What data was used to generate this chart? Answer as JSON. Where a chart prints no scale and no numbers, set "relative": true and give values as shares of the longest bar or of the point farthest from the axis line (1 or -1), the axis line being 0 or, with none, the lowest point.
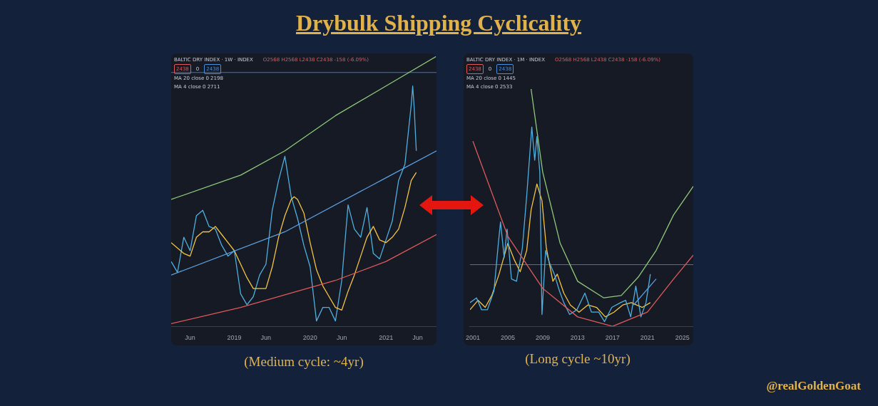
{
  "chart_data": [
    {
      "type": "line",
      "title": "BALTIC DRY INDEX · 1W · INDEX",
      "relative": true,
      "legend": false,
      "tick_labels": "x",
      "annotations": [
        "O2568 H2568 L2438 C2438 -158 (-6.09%)",
        "2438",
        "0",
        "2438",
        "MA 20 close 0 2198",
        "MA 4 close 0 2711",
        "(Medium cycle: ~4yr)",
        "Drybulk Shipping Cyclicality"
      ],
      "xlim": [
        "2018-03",
        "2021-09"
      ],
      "xticks": [
        {
          "value": "2018-06",
          "label": "Jun"
        },
        {
          "value": "2019-01",
          "label": "2019"
        },
        {
          "value": "2019-06",
          "label": "Jun"
        },
        {
          "value": "2020-01",
          "label": "2020"
        },
        {
          "value": "2020-06",
          "label": "Jun"
        },
        {
          "value": "2021-01",
          "label": "2021"
        },
        {
          "value": "2021-06",
          "label": "Jun"
        }
      ],
      "ref_lines": [
        {
          "axis": "y",
          "value": 0.94,
          "color": "#3a78c2"
        }
      ],
      "series": [
        {
          "color": "#e05a5a",
          "x": [
            "2018-03",
            "2019-02",
            "2020-05",
            "2021-01",
            "2021-09"
          ],
          "values": [
            0.01,
            0.07,
            0.17,
            0.24,
            0.34
          ]
        },
        {
          "color": "#5b9fe0",
          "x": [
            "2018-03",
            "2019-09",
            "2021-01",
            "2021-09"
          ],
          "values": [
            0.19,
            0.35,
            0.55,
            0.65
          ]
        },
        {
          "color": "#8fc97a",
          "x": [
            "2018-03",
            "2019-02",
            "2019-09",
            "2020-05",
            "2021-01",
            "2021-09"
          ],
          "values": [
            0.47,
            0.56,
            0.65,
            0.78,
            0.89,
            1.0
          ]
        },
        {
          "color": "#f5c542",
          "x": [
            "2018-03",
            "2018-05",
            "2018-06",
            "2018-07",
            "2018-08",
            "2018-09",
            "2018-10",
            "2018-11",
            "2018-12",
            "2019-01",
            "2019-02",
            "2019-03",
            "2019-04",
            "2019-05",
            "2019-06",
            "2019-07",
            "2019-08",
            "2019-09",
            "2019-10",
            "2019-10-15",
            "2019-11",
            "2019-12",
            "2020-01",
            "2020-02",
            "2020-03",
            "2020-04",
            "2020-05",
            "2020-06",
            "2020-07",
            "2020-08",
            "2020-09",
            "2020-10",
            "2020-11",
            "2020-12",
            "2021-01",
            "2021-02",
            "2021-03",
            "2021-04",
            "2021-05",
            "2021-05-25"
          ],
          "values": [
            0.31,
            0.27,
            0.26,
            0.33,
            0.35,
            0.35,
            0.37,
            0.34,
            0.31,
            0.28,
            0.23,
            0.18,
            0.14,
            0.14,
            0.14,
            0.22,
            0.33,
            0.41,
            0.47,
            0.48,
            0.47,
            0.42,
            0.31,
            0.21,
            0.15,
            0.11,
            0.07,
            0.06,
            0.13,
            0.19,
            0.26,
            0.33,
            0.37,
            0.32,
            0.31,
            0.33,
            0.36,
            0.44,
            0.54,
            0.57
          ]
        },
        {
          "color": "#4fb0e0",
          "x": [
            "2018-03",
            "2018-04",
            "2018-05",
            "2018-06",
            "2018-07",
            "2018-08",
            "2018-09",
            "2018-10",
            "2018-11",
            "2018-12",
            "2019-01",
            "2019-02",
            "2019-03",
            "2019-04",
            "2019-05",
            "2019-06",
            "2019-07",
            "2019-08",
            "2019-09",
            "2019-10",
            "2019-11",
            "2019-12",
            "2020-01",
            "2020-02",
            "2020-03",
            "2020-04",
            "2020-05",
            "2020-06",
            "2020-07",
            "2020-08",
            "2020-09",
            "2020-10",
            "2020-11",
            "2020-12",
            "2021-01",
            "2021-02",
            "2021-03",
            "2021-04",
            "2021-05",
            "2021-05-08",
            "2021-05-15",
            "2021-05-25"
          ],
          "values": [
            0.24,
            0.2,
            0.33,
            0.28,
            0.41,
            0.43,
            0.37,
            0.36,
            0.3,
            0.26,
            0.28,
            0.12,
            0.08,
            0.11,
            0.19,
            0.23,
            0.43,
            0.54,
            0.63,
            0.48,
            0.4,
            0.3,
            0.22,
            0.02,
            0.07,
            0.07,
            0.02,
            0.17,
            0.45,
            0.36,
            0.33,
            0.44,
            0.27,
            0.25,
            0.32,
            0.39,
            0.54,
            0.6,
            0.82,
            0.89,
            0.81,
            0.65
          ]
        }
      ]
    },
    {
      "type": "line",
      "title": "BALTIC DRY INDEX · 1M · INDEX",
      "relative": true,
      "legend": false,
      "tick_labels": "x",
      "annotations": [
        "O2568 H2568 L2438 C2438 -158 (-6.09%)",
        "2438",
        "0",
        "2438",
        "MA 20 close 0 1445",
        "MA 4 close 0 2533",
        "(Long cycle ~10yr)",
        "@realGoldenGoat"
      ],
      "xlim": [
        "2000-09",
        "2026-04"
      ],
      "xticks": [
        "2001",
        "2005",
        "2009",
        "2013",
        "2017",
        "2021",
        "2025"
      ],
      "ref_lines": [
        {
          "axis": "y",
          "value": 0.26,
          "color": "#3a78c2"
        }
      ],
      "series": [
        {
          "color": "#e05a5a",
          "x": [
            "2001-01",
            "2005-01",
            "2009-01",
            "2013-01",
            "2017-01",
            "2021-01",
            "2024-01",
            "2026-04"
          ],
          "values": [
            0.78,
            0.38,
            0.16,
            0.04,
            0.0,
            0.06,
            0.2,
            0.3
          ]
        },
        {
          "color": "#8fc97a",
          "x": [
            "2007-09",
            "2009-01",
            "2011-01",
            "2013-01",
            "2016-01",
            "2018-01",
            "2020-01",
            "2022-01",
            "2024-01",
            "2026-04"
          ],
          "values": [
            1.0,
            0.65,
            0.35,
            0.19,
            0.12,
            0.13,
            0.21,
            0.32,
            0.47,
            0.59
          ]
        },
        {
          "color": "#5b9fe0",
          "x": [
            "2019-06",
            "2022-01"
          ],
          "values": [
            0.09,
            0.2
          ]
        },
        {
          "color": "#4fb0e0",
          "x": [
            "2000-09",
            "2001-06",
            "2002-01",
            "2002-09",
            "2003-06",
            "2003-12",
            "2004-03",
            "2004-08",
            "2004-12",
            "2005-06",
            "2006-01",
            "2006-09",
            "2007-03",
            "2007-10",
            "2008-02",
            "2008-05",
            "2008-09",
            "2008-12",
            "2009-05",
            "2009-10",
            "2010-05",
            "2010-12",
            "2011-06",
            "2012-02",
            "2012-12",
            "2013-11",
            "2014-08",
            "2015-06",
            "2016-02",
            "2016-12",
            "2017-12",
            "2018-07",
            "2019-02",
            "2019-09",
            "2020-04",
            "2020-11",
            "2021-05"
          ],
          "values": [
            0.1,
            0.12,
            0.07,
            0.07,
            0.15,
            0.35,
            0.44,
            0.29,
            0.41,
            0.2,
            0.19,
            0.33,
            0.55,
            0.84,
            0.7,
            0.8,
            0.65,
            0.05,
            0.32,
            0.27,
            0.22,
            0.15,
            0.1,
            0.05,
            0.07,
            0.14,
            0.06,
            0.06,
            0.02,
            0.08,
            0.1,
            0.11,
            0.04,
            0.17,
            0.04,
            0.1,
            0.22
          ]
        },
        {
          "color": "#f5c542",
          "x": [
            "2000-09",
            "2001-08",
            "2002-06",
            "2003-03",
            "2004-01",
            "2005-01",
            "2005-10",
            "2006-06",
            "2007-03",
            "2007-09",
            "2008-05",
            "2008-12",
            "2009-06",
            "2010-03",
            "2010-09",
            "2011-06",
            "2012-03",
            "2013-03",
            "2014-03",
            "2015-03",
            "2016-03",
            "2017-03",
            "2018-03",
            "2019-03",
            "2019-10",
            "2020-06",
            "2021-05"
          ],
          "values": [
            0.07,
            0.11,
            0.08,
            0.13,
            0.22,
            0.35,
            0.28,
            0.23,
            0.32,
            0.49,
            0.6,
            0.53,
            0.33,
            0.19,
            0.22,
            0.14,
            0.09,
            0.06,
            0.09,
            0.08,
            0.04,
            0.06,
            0.09,
            0.1,
            0.09,
            0.08,
            0.1
          ]
        }
      ]
    }
  ]
}
